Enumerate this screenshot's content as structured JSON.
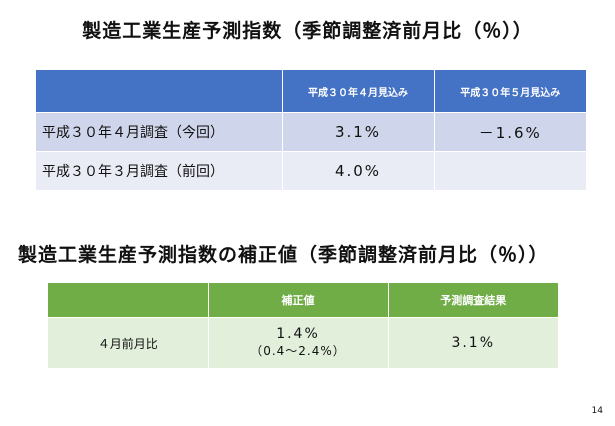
{
  "section1": {
    "title": "製造工業生産予測指数（季節調整済前月比（％））",
    "headers": [
      "",
      "平成３０年４月見込み",
      "平成３０年５月見込み"
    ],
    "rows": [
      {
        "label": "平成３０年４月調査（今回）",
        "values": [
          "3.1%",
          "－1.6%"
        ]
      },
      {
        "label": "平成３０年３月調査（前回）",
        "values": [
          "4.0%",
          ""
        ]
      }
    ]
  },
  "section2": {
    "title": "製造工業生産予測指数の補正値（季節調整済前月比（％））",
    "headers": [
      "",
      "補正値",
      "予測調査結果"
    ],
    "row": {
      "label": "４月前月比",
      "correction_value": "1.4%",
      "correction_range": "（0.4～2.4%）",
      "survey_result": "3.1%"
    }
  },
  "page_number": "14"
}
